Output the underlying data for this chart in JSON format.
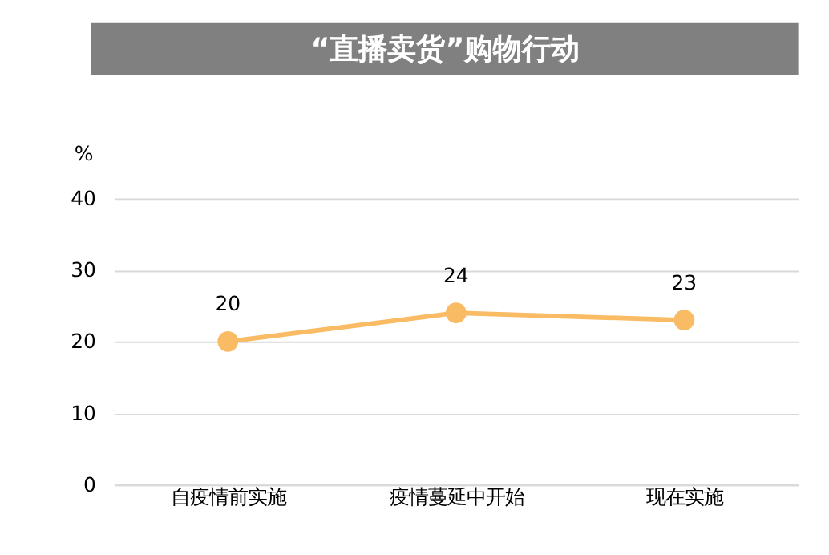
{
  "chart_data": {
    "type": "line",
    "title": "“直播卖货”购物行动",
    "ylabel": "%",
    "categories": [
      "自疫情前实施",
      "疫情蔓延中开始",
      "现在实施"
    ],
    "series": [
      {
        "color": "#f9bb64",
        "values": [
          20,
          24,
          23
        ]
      }
    ],
    "ylim": [
      0,
      40
    ],
    "yticks": [
      0,
      10,
      20,
      30,
      40
    ],
    "grid": "y",
    "marker": "circle",
    "data_labels": true,
    "legend": false
  }
}
